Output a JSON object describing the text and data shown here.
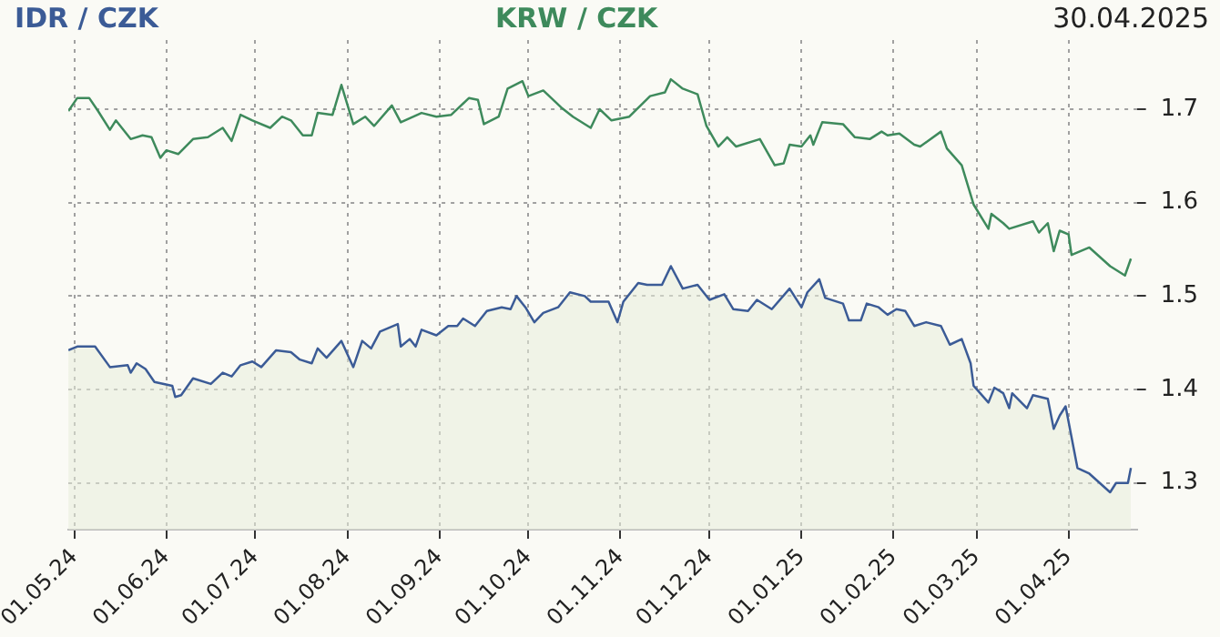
{
  "chart_data": {
    "type": "line",
    "title": "30.04.2025",
    "legend": false,
    "grid": true,
    "marker": "none",
    "line_style": "solid",
    "xlim": [
      "2024-04-29",
      "2025-04-24"
    ],
    "xticks": [
      {
        "value": "2024-05-01",
        "label": "01.05.24"
      },
      {
        "value": "2024-06-01",
        "label": "01.06.24"
      },
      {
        "value": "2024-07-01",
        "label": "01.07.24"
      },
      {
        "value": "2024-08-01",
        "label": "01.08.24"
      },
      {
        "value": "2024-09-01",
        "label": "01.09.24"
      },
      {
        "value": "2024-10-01",
        "label": "01.10.24"
      },
      {
        "value": "2024-11-01",
        "label": "01.11.24"
      },
      {
        "value": "2024-12-01",
        "label": "01.12.24"
      },
      {
        "value": "2025-01-01",
        "label": "01.01.25"
      },
      {
        "value": "2025-02-01",
        "label": "01.02.25"
      },
      {
        "value": "2025-03-01",
        "label": "01.03.25"
      },
      {
        "value": "2025-04-01",
        "label": "01.04.25"
      }
    ],
    "ylim": [
      1.25,
      1.774
    ],
    "yticks": [
      1.3,
      1.4,
      1.5,
      1.6,
      1.7
    ],
    "series": [
      {
        "name": "IDR / CZK",
        "type": "area",
        "color": "#3b5b96",
        "x": [
          "2024-04-29",
          "2024-05-02",
          "2024-05-08",
          "2024-05-13",
          "2024-05-19",
          "2024-05-20",
          "2024-05-22",
          "2024-05-25",
          "2024-05-28",
          "2024-06-03",
          "2024-06-04",
          "2024-06-06",
          "2024-06-10",
          "2024-06-16",
          "2024-06-20",
          "2024-06-23",
          "2024-06-26",
          "2024-06-30",
          "2024-07-03",
          "2024-07-08",
          "2024-07-13",
          "2024-07-16",
          "2024-07-20",
          "2024-07-22",
          "2024-07-25",
          "2024-07-30",
          "2024-08-03",
          "2024-08-06",
          "2024-08-09",
          "2024-08-12",
          "2024-08-18",
          "2024-08-19",
          "2024-08-22",
          "2024-08-24",
          "2024-08-26",
          "2024-08-31",
          "2024-09-04",
          "2024-09-07",
          "2024-09-09",
          "2024-09-13",
          "2024-09-17",
          "2024-09-22",
          "2024-09-25",
          "2024-09-27",
          "2024-09-30",
          "2024-10-03",
          "2024-10-06",
          "2024-10-11",
          "2024-10-15",
          "2024-10-20",
          "2024-10-22",
          "2024-10-28",
          "2024-10-31",
          "2024-11-02",
          "2024-11-07",
          "2024-11-10",
          "2024-11-15",
          "2024-11-18",
          "2024-11-22",
          "2024-11-27",
          "2024-12-01",
          "2024-12-06",
          "2024-12-09",
          "2024-12-14",
          "2024-12-17",
          "2024-12-22",
          "2024-12-28",
          "2025-01-01",
          "2025-01-03",
          "2025-01-07",
          "2025-01-09",
          "2025-01-15",
          "2025-01-17",
          "2025-01-21",
          "2025-01-23",
          "2025-01-27",
          "2025-01-30",
          "2025-02-02",
          "2025-02-05",
          "2025-02-08",
          "2025-02-12",
          "2025-02-17",
          "2025-02-20",
          "2025-02-24",
          "2025-02-27",
          "2025-02-28",
          "2025-03-05",
          "2025-03-07",
          "2025-03-10",
          "2025-03-12",
          "2025-03-13",
          "2025-03-18",
          "2025-03-20",
          "2025-03-25",
          "2025-03-27",
          "2025-03-29",
          "2025-03-31",
          "2025-04-04",
          "2025-04-08",
          "2025-04-15",
          "2025-04-17",
          "2025-04-21",
          "2025-04-22"
        ],
        "values": [
          1.442,
          1.446,
          1.446,
          1.424,
          1.426,
          1.418,
          1.428,
          1.422,
          1.408,
          1.404,
          1.392,
          1.394,
          1.412,
          1.406,
          1.418,
          1.414,
          1.426,
          1.43,
          1.424,
          1.442,
          1.44,
          1.432,
          1.428,
          1.444,
          1.434,
          1.452,
          1.424,
          1.452,
          1.444,
          1.462,
          1.47,
          1.446,
          1.454,
          1.446,
          1.464,
          1.458,
          1.468,
          1.468,
          1.476,
          1.468,
          1.484,
          1.488,
          1.486,
          1.5,
          1.488,
          1.472,
          1.482,
          1.488,
          1.504,
          1.5,
          1.494,
          1.494,
          1.472,
          1.494,
          1.514,
          1.512,
          1.512,
          1.532,
          1.508,
          1.512,
          1.496,
          1.502,
          1.486,
          1.484,
          1.496,
          1.486,
          1.508,
          1.488,
          1.504,
          1.518,
          1.498,
          1.492,
          1.474,
          1.474,
          1.492,
          1.488,
          1.48,
          1.486,
          1.484,
          1.468,
          1.472,
          1.468,
          1.448,
          1.454,
          1.428,
          1.404,
          1.386,
          1.402,
          1.396,
          1.38,
          1.396,
          1.38,
          1.394,
          1.39,
          1.358,
          1.372,
          1.382,
          1.316,
          1.31,
          1.29,
          1.3,
          1.3,
          1.316
        ]
      },
      {
        "name": "KRW / CZK",
        "type": "line",
        "color": "#3e8a5c",
        "x": [
          "2024-04-29",
          "2024-05-02",
          "2024-05-06",
          "2024-05-09",
          "2024-05-13",
          "2024-05-15",
          "2024-05-20",
          "2024-05-24",
          "2024-05-27",
          "2024-05-30",
          "2024-06-01",
          "2024-06-05",
          "2024-06-10",
          "2024-06-15",
          "2024-06-20",
          "2024-06-23",
          "2024-06-26",
          "2024-06-30",
          "2024-07-06",
          "2024-07-10",
          "2024-07-13",
          "2024-07-17",
          "2024-07-20",
          "2024-07-22",
          "2024-07-27",
          "2024-07-30",
          "2024-08-03",
          "2024-08-07",
          "2024-08-10",
          "2024-08-16",
          "2024-08-19",
          "2024-08-26",
          "2024-08-31",
          "2024-09-05",
          "2024-09-11",
          "2024-09-14",
          "2024-09-16",
          "2024-09-21",
          "2024-09-24",
          "2024-09-29",
          "2024-10-01",
          "2024-10-06",
          "2024-10-12",
          "2024-10-16",
          "2024-10-22",
          "2024-10-25",
          "2024-10-29",
          "2024-11-04",
          "2024-11-11",
          "2024-11-16",
          "2024-11-18",
          "2024-11-22",
          "2024-11-27",
          "2024-11-30",
          "2024-12-04",
          "2024-12-07",
          "2024-12-10",
          "2024-12-18",
          "2024-12-23",
          "2024-12-26",
          "2024-12-28",
          "2025-01-01",
          "2025-01-04",
          "2025-01-05",
          "2025-01-08",
          "2025-01-15",
          "2025-01-19",
          "2025-01-24",
          "2025-01-28",
          "2025-01-30",
          "2025-02-03",
          "2025-02-08",
          "2025-02-10",
          "2025-02-17",
          "2025-02-19",
          "2025-02-24",
          "2025-02-28",
          "2025-03-05",
          "2025-03-06",
          "2025-03-10",
          "2025-03-12",
          "2025-03-20",
          "2025-03-22",
          "2025-03-25",
          "2025-03-27",
          "2025-03-29",
          "2025-04-01",
          "2025-04-02",
          "2025-04-08",
          "2025-04-15",
          "2025-04-20",
          "2025-04-22"
        ],
        "values": [
          1.698,
          1.712,
          1.712,
          1.698,
          1.678,
          1.688,
          1.668,
          1.672,
          1.67,
          1.648,
          1.656,
          1.652,
          1.668,
          1.67,
          1.68,
          1.666,
          1.694,
          1.688,
          1.68,
          1.692,
          1.688,
          1.672,
          1.672,
          1.696,
          1.694,
          1.726,
          1.684,
          1.692,
          1.682,
          1.704,
          1.686,
          1.696,
          1.692,
          1.694,
          1.712,
          1.71,
          1.684,
          1.692,
          1.722,
          1.73,
          1.714,
          1.72,
          1.702,
          1.692,
          1.68,
          1.7,
          1.688,
          1.692,
          1.714,
          1.718,
          1.732,
          1.722,
          1.716,
          1.682,
          1.66,
          1.67,
          1.66,
          1.668,
          1.64,
          1.642,
          1.662,
          1.66,
          1.672,
          1.662,
          1.686,
          1.684,
          1.67,
          1.668,
          1.676,
          1.672,
          1.674,
          1.662,
          1.66,
          1.676,
          1.658,
          1.64,
          1.598,
          1.572,
          1.588,
          1.578,
          1.572,
          1.58,
          1.568,
          1.578,
          1.548,
          1.57,
          1.566,
          1.544,
          1.552,
          1.532,
          1.522,
          1.54
        ]
      }
    ]
  }
}
